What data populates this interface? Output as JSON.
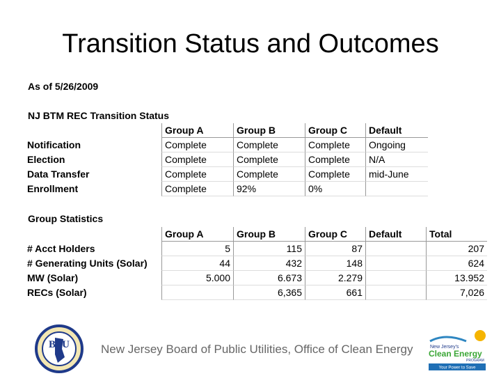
{
  "title": "Transition Status and Outcomes",
  "as_of": "As of 5/26/2009",
  "status": {
    "heading": "NJ BTM REC Transition Status",
    "header": [
      null,
      "Group A",
      "Group B",
      "Group C",
      "Default"
    ],
    "rows": [
      [
        "Notification",
        "Complete",
        "Complete",
        "Complete",
        "Ongoing"
      ],
      [
        "Election",
        "Complete",
        "Complete",
        "Complete",
        "N/A"
      ],
      [
        "Data Transfer",
        "Complete",
        "Complete",
        "Complete",
        "mid-June"
      ],
      [
        "Enrollment",
        "Complete",
        "92%",
        "0%",
        null
      ]
    ]
  },
  "statistics": {
    "heading": "Group Statistics",
    "header": [
      null,
      "Group A",
      "Group B",
      "Group C",
      "Default",
      "Total"
    ],
    "rows": [
      [
        "# Acct Holders",
        "5",
        "115",
        "87",
        null,
        "207"
      ],
      [
        "# Generating Units (Solar)",
        "44",
        "432",
        "148",
        null,
        "624"
      ],
      [
        "MW (Solar)",
        "5.000",
        "6.673",
        "2.279",
        null,
        "13.952"
      ],
      [
        "RECs (Solar)",
        null,
        "6,365",
        "661",
        null,
        "7,026"
      ]
    ]
  },
  "footer": {
    "text": "New Jersey Board of Public Utilities, Office of Clean Energy",
    "bpu_logo": "BPU",
    "cep_logo": {
      "line1": "New Jersey's",
      "line2": "Clean Energy",
      "line3": "PROGRAM",
      "tagline": "Your Power to Save"
    }
  }
}
